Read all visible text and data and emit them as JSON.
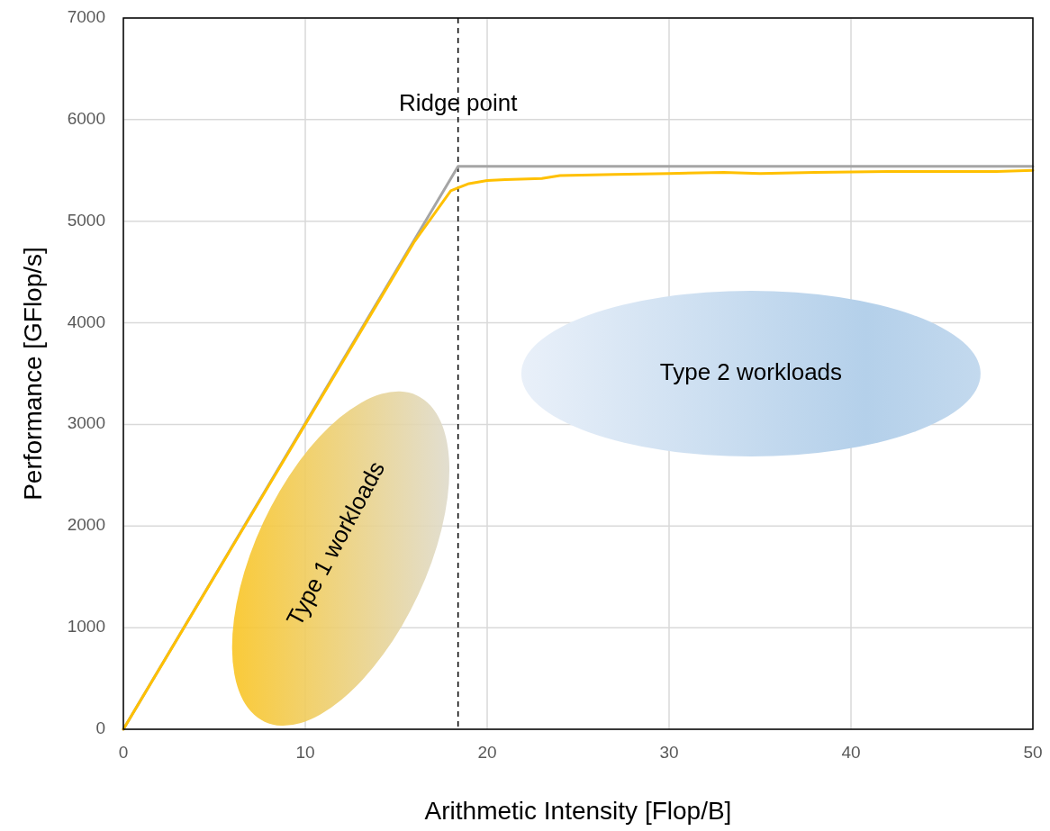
{
  "chart_data": {
    "type": "line",
    "xlabel": "Arithmetic Intensity [Flop/B]",
    "ylabel": "Performance [GFlop/s]",
    "xlim": [
      0,
      50
    ],
    "ylim": [
      0,
      7000
    ],
    "xticks": [
      0,
      10,
      20,
      30,
      40,
      50
    ],
    "yticks": [
      0,
      1000,
      2000,
      3000,
      4000,
      5000,
      6000,
      7000
    ],
    "grid": true,
    "marker": "none",
    "line_style": "solid",
    "series": [
      {
        "color": "#a5a5a5",
        "x": [
          0,
          18.4,
          50
        ],
        "values": [
          0,
          5540,
          5540
        ]
      },
      {
        "color": "#ffc000",
        "x": [
          0,
          15,
          16,
          17,
          18,
          19,
          20,
          21,
          23,
          24,
          27,
          30,
          33,
          35,
          38,
          42,
          48,
          50
        ],
        "values": [
          0,
          4500,
          4800,
          5050,
          5300,
          5370,
          5400,
          5410,
          5420,
          5450,
          5460,
          5470,
          5480,
          5470,
          5480,
          5490,
          5490,
          5500
        ]
      }
    ],
    "ref_lines": [
      {
        "axis": "x",
        "value": 18.4,
        "label": "Ridge point",
        "color": "#000000",
        "line_style": "dashed"
      }
    ],
    "annotations": [
      "Type 1 workloads",
      "Type 2 workloads"
    ]
  }
}
